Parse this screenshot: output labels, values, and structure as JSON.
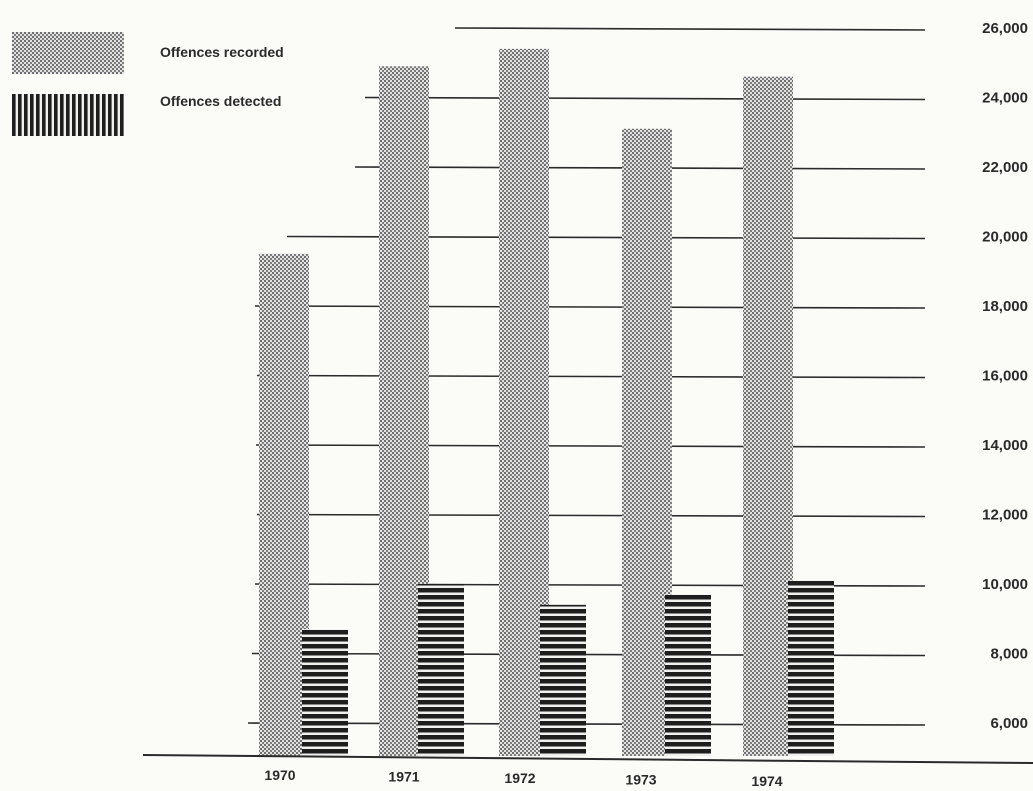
{
  "chart_data": {
    "type": "bar",
    "categories": [
      "1970",
      "1971",
      "1972",
      "1973",
      "1974"
    ],
    "series": [
      {
        "name": "Offences recorded",
        "values": [
          19500,
          24900,
          25400,
          23100,
          24600
        ]
      },
      {
        "name": "Offences detected",
        "values": [
          8700,
          10000,
          9400,
          9700,
          10100
        ]
      }
    ],
    "y_ticks": [
      "26,000",
      "24,000",
      "22,000",
      "20,000",
      "18,000",
      "16,000",
      "14,000",
      "12,000",
      "10,000",
      "8,000",
      "6,000"
    ],
    "ylim": [
      5000,
      26000
    ],
    "grid": true,
    "legend": "top-left",
    "colors": {
      "recorded": "#9a9a9a",
      "detected": "#1e1e1e",
      "grid": "#2a2a2a"
    }
  }
}
